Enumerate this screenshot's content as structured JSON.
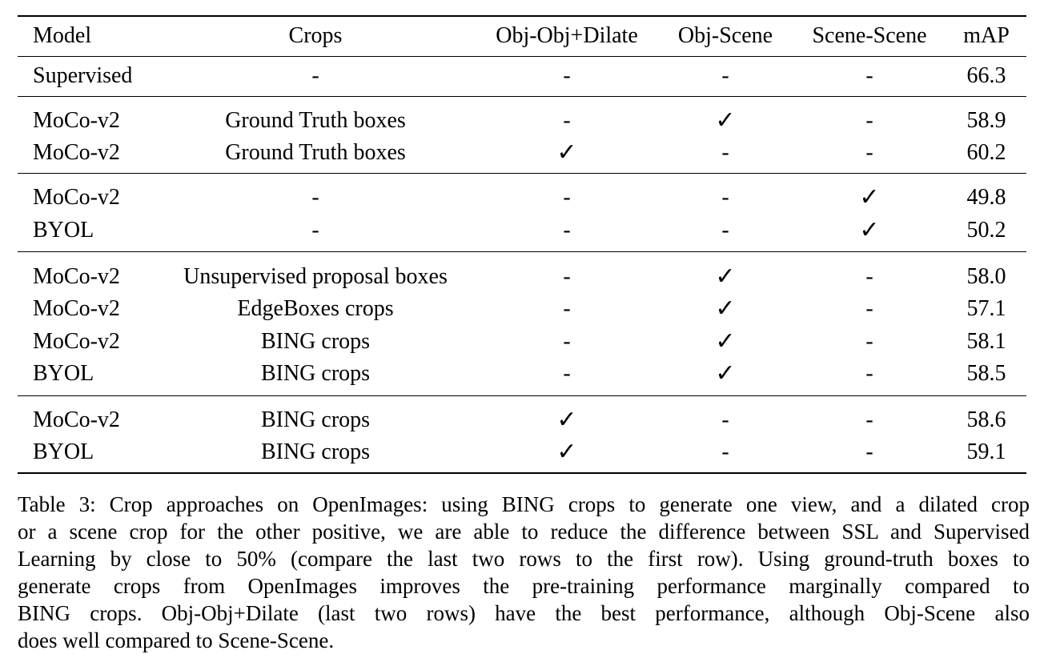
{
  "table": {
    "header": [
      "Model",
      "Crops",
      "Obj-Obj+Dilate",
      "Obj-Scene",
      "Scene-Scene",
      "mAP"
    ],
    "groups": [
      [
        [
          "Supervised",
          "-",
          "-",
          "-",
          "-",
          "66.3"
        ]
      ],
      [
        [
          "MoCo-v2",
          "Ground Truth boxes",
          "-",
          "✓",
          "-",
          "58.9"
        ],
        [
          "MoCo-v2",
          "Ground Truth boxes",
          "✓",
          "-",
          "-",
          "60.2"
        ]
      ],
      [
        [
          "MoCo-v2",
          "-",
          "-",
          "-",
          "✓",
          "49.8"
        ],
        [
          "BYOL",
          "-",
          "-",
          "-",
          "✓",
          "50.2"
        ]
      ],
      [
        [
          "MoCo-v2",
          "Unsupervised proposal boxes",
          "-",
          "✓",
          "-",
          "58.0"
        ],
        [
          "MoCo-v2",
          "EdgeBoxes crops",
          "-",
          "✓",
          "-",
          "57.1"
        ],
        [
          "MoCo-v2",
          "BING crops",
          "-",
          "✓",
          "-",
          "58.1"
        ],
        [
          "BYOL",
          "BING crops",
          "-",
          "✓",
          "-",
          "58.5"
        ]
      ],
      [
        [
          "MoCo-v2",
          "BING crops",
          "✓",
          "-",
          "-",
          "58.6"
        ],
        [
          "BYOL",
          "BING crops",
          "✓",
          "-",
          "-",
          "59.1"
        ]
      ]
    ]
  },
  "caption": {
    "lines": [
      "Table 3: Crop approaches on OpenImages: using BING crops to generate one view, and a dilated crop",
      "or a scene crop for the other positive, we are able to reduce the difference between SSL and Supervised",
      "Learning by close to 50% (compare the last two rows to the first row). Using ground-truth boxes to",
      "generate crops from OpenImages improves the pre-training performance marginally compared to",
      "BING crops. Obj-Obj+Dilate (last two rows) have the best performance, although Obj-Scene also",
      "does well compared to Scene-Scene."
    ]
  }
}
